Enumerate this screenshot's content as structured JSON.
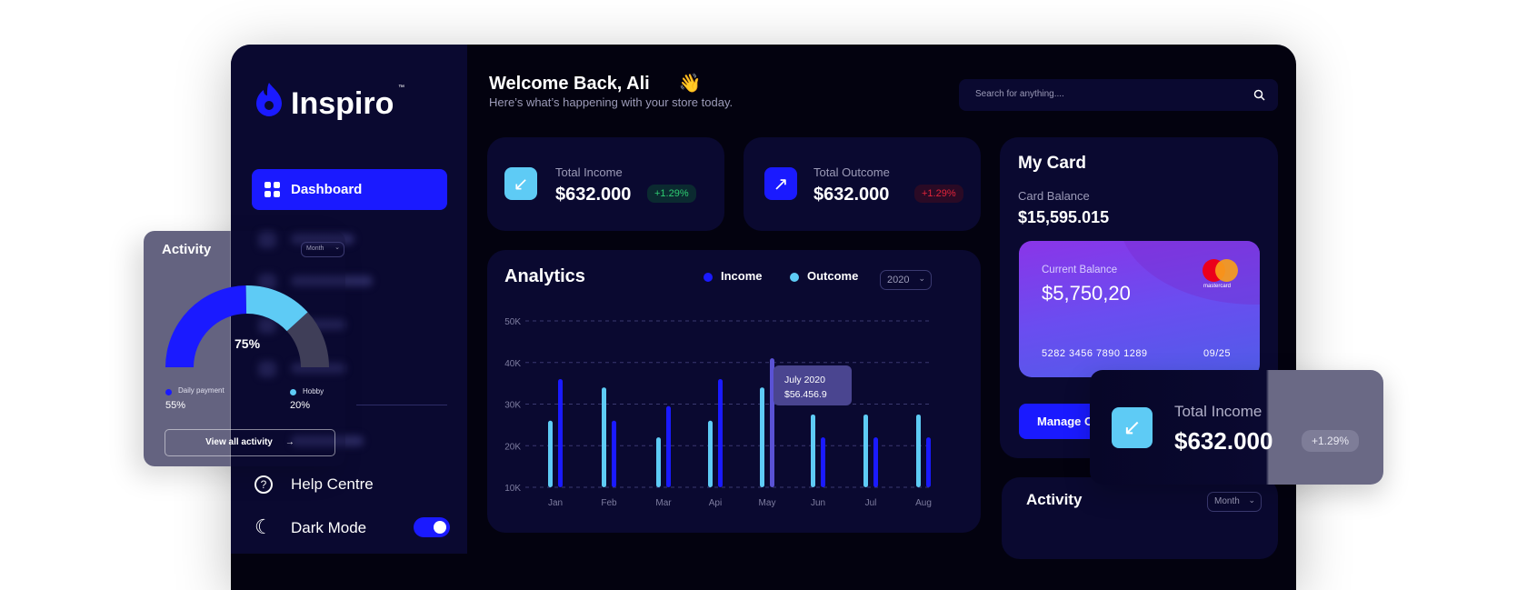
{
  "brand": {
    "name": "Inspiro",
    "tm": "™",
    "color": "#1a1aff"
  },
  "sidebar": {
    "active_item": "Dashboard",
    "help": "Help Centre",
    "dark_mode": "Dark Mode",
    "dark_mode_on": true
  },
  "header": {
    "title": "Welcome Back, Ali",
    "emoji": "👋",
    "subtitle": "Here’s what’s happening with your store today.",
    "search_placeholder": "Search for anything...."
  },
  "stats": [
    {
      "label": "Total Income",
      "value": "$632.000",
      "change": "+1.29%",
      "icon": "arrow-down-left-icon",
      "icon_color": "#5ecbf5",
      "change_color": "#2ecc71"
    },
    {
      "label": "Total Outcome",
      "value": "$632.000",
      "change": "+1.29%",
      "icon": "arrow-up-right-icon",
      "icon_color": "#1a1aff",
      "change_color": "#e0243a"
    }
  ],
  "analytics": {
    "title": "Analytics",
    "year": "2020",
    "tooltip": {
      "title": "July 2020",
      "value": "$56.456.9"
    }
  },
  "chart_data": {
    "type": "bar",
    "categories": [
      "Jan",
      "Feb",
      "Mar",
      "Api",
      "May",
      "Jun",
      "Jul",
      "Aug"
    ],
    "series": [
      {
        "name": "Income",
        "color": "#1a1aff",
        "values": [
          36,
          26,
          29.5,
          36,
          41,
          22,
          22,
          22
        ]
      },
      {
        "name": "Outcome",
        "color": "#5ecbf5",
        "values": [
          26,
          34,
          22,
          26,
          34,
          27.5,
          27.5,
          27.5
        ]
      }
    ],
    "yticks": [
      "10K",
      "20K",
      "30K",
      "40K",
      "50K"
    ],
    "ylim": [
      10,
      50
    ],
    "grid": true,
    "legend": "top-right",
    "highlight_color": "#5a52d5"
  },
  "my_card": {
    "title": "My Card",
    "balance_label": "Card Balance",
    "balance": "$15,595.015",
    "current_label": "Current Balance",
    "current": "$5,750,20",
    "number": "5282 3456 7890 1289",
    "expiry": "09/25",
    "network": "mastercard",
    "manage": "Manage Cards"
  },
  "activity_bottom": {
    "title": "Activity",
    "period": "Month"
  },
  "activity_float": {
    "title": "Activity",
    "period": "Month",
    "percent": "75%",
    "items": [
      {
        "label": "Daily payment",
        "value": "55%",
        "color": "#1a1aff"
      },
      {
        "label": "Hobby",
        "value": "20%",
        "color": "#5ecbf5"
      }
    ],
    "button": "View all activity",
    "arrow": "→"
  },
  "income_float": {
    "label": "Total Income",
    "value": "$632.000",
    "change": "+1.29%"
  }
}
